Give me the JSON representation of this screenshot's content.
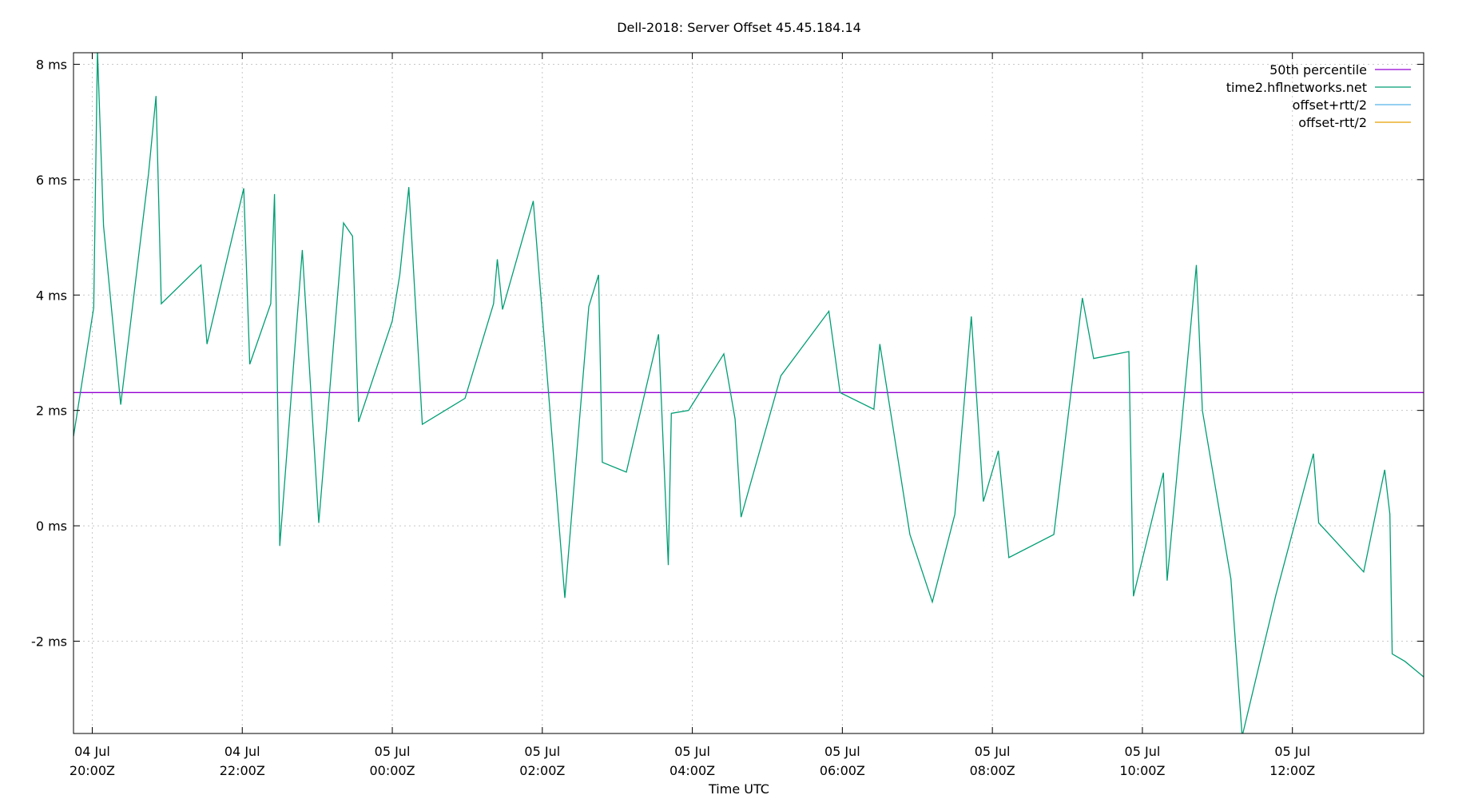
{
  "chart_data": {
    "type": "line",
    "title": "Dell-2018: Server Offset 45.45.184.14",
    "xlabel": "Time UTC",
    "ylabel": "",
    "xlim_hours": [
      19.75,
      37.75
    ],
    "ylim": [
      -3.6,
      8.2
    ],
    "grid": true,
    "legend_position": "top-right",
    "y_ticks": [
      {
        "value": -2,
        "label": "-2 ms"
      },
      {
        "value": 0,
        "label": "0 ms"
      },
      {
        "value": 2,
        "label": "2 ms"
      },
      {
        "value": 4,
        "label": "4 ms"
      },
      {
        "value": 6,
        "label": "6 ms"
      },
      {
        "value": 8,
        "label": "8 ms"
      }
    ],
    "x_ticks": [
      {
        "hour": 20,
        "date": "04 Jul",
        "time": "20:00Z"
      },
      {
        "hour": 22,
        "date": "04 Jul",
        "time": "22:00Z"
      },
      {
        "hour": 24,
        "date": "05 Jul",
        "time": "00:00Z"
      },
      {
        "hour": 26,
        "date": "05 Jul",
        "time": "02:00Z"
      },
      {
        "hour": 28,
        "date": "05 Jul",
        "time": "04:00Z"
      },
      {
        "hour": 30,
        "date": "05 Jul",
        "time": "06:00Z"
      },
      {
        "hour": 32,
        "date": "05 Jul",
        "time": "08:00Z"
      },
      {
        "hour": 34,
        "date": "05 Jul",
        "time": "10:00Z"
      },
      {
        "hour": 36,
        "date": "05 Jul",
        "time": "12:00Z"
      }
    ],
    "series": [
      {
        "name": "50th percentile",
        "color": "#9400d3",
        "values": [
          [
            19.75,
            2.31
          ],
          [
            37.75,
            2.31
          ]
        ]
      },
      {
        "name": "time2.hflnetworks.net",
        "color": "#009e73",
        "values": [
          [
            19.75,
            1.55
          ],
          [
            20.02,
            3.78
          ],
          [
            20.07,
            8.25
          ],
          [
            20.15,
            5.2
          ],
          [
            20.38,
            2.1
          ],
          [
            20.75,
            6.1
          ],
          [
            20.85,
            7.45
          ],
          [
            20.92,
            3.85
          ],
          [
            21.45,
            4.52
          ],
          [
            21.53,
            3.15
          ],
          [
            22.02,
            5.85
          ],
          [
            22.1,
            2.8
          ],
          [
            22.38,
            3.85
          ],
          [
            22.43,
            5.75
          ],
          [
            22.5,
            -0.35
          ],
          [
            22.8,
            4.78
          ],
          [
            23.02,
            0.05
          ],
          [
            23.35,
            5.25
          ],
          [
            23.47,
            5.02
          ],
          [
            23.55,
            1.8
          ],
          [
            24.0,
            3.55
          ],
          [
            24.1,
            4.35
          ],
          [
            24.22,
            5.87
          ],
          [
            24.4,
            1.76
          ],
          [
            24.97,
            2.21
          ],
          [
            25.35,
            3.85
          ],
          [
            25.4,
            4.62
          ],
          [
            25.47,
            3.75
          ],
          [
            25.88,
            5.63
          ],
          [
            26.3,
            -1.25
          ],
          [
            26.62,
            3.8
          ],
          [
            26.75,
            4.35
          ],
          [
            26.8,
            1.1
          ],
          [
            27.12,
            0.93
          ],
          [
            27.55,
            3.32
          ],
          [
            27.68,
            -0.68
          ],
          [
            27.72,
            1.95
          ],
          [
            27.95,
            2.0
          ],
          [
            28.42,
            2.98
          ],
          [
            28.57,
            1.85
          ],
          [
            28.65,
            0.15
          ],
          [
            29.18,
            2.6
          ],
          [
            29.82,
            3.72
          ],
          [
            29.97,
            2.31
          ],
          [
            30.42,
            2.02
          ],
          [
            30.5,
            3.15
          ],
          [
            30.9,
            -0.15
          ],
          [
            31.2,
            -1.32
          ],
          [
            31.5,
            0.2
          ],
          [
            31.72,
            3.63
          ],
          [
            31.88,
            0.42
          ],
          [
            32.08,
            1.3
          ],
          [
            32.22,
            -0.55
          ],
          [
            32.82,
            -0.15
          ],
          [
            33.2,
            3.95
          ],
          [
            33.35,
            2.9
          ],
          [
            33.82,
            3.02
          ],
          [
            33.88,
            -1.22
          ],
          [
            34.28,
            0.92
          ],
          [
            34.33,
            -0.95
          ],
          [
            34.72,
            4.52
          ],
          [
            34.8,
            2.0
          ],
          [
            35.18,
            -0.92
          ],
          [
            35.33,
            -3.65
          ],
          [
            35.78,
            -1.2
          ],
          [
            36.28,
            1.25
          ],
          [
            36.35,
            0.05
          ],
          [
            36.95,
            -0.8
          ],
          [
            37.23,
            0.97
          ],
          [
            37.3,
            0.2
          ],
          [
            37.33,
            -2.22
          ],
          [
            37.5,
            -2.35
          ],
          [
            37.75,
            -2.62
          ]
        ]
      },
      {
        "name": "offset+rtt/2",
        "color": "#56b4e9",
        "values": []
      },
      {
        "name": "offset-rtt/2",
        "color": "#e69f00",
        "values": []
      }
    ]
  }
}
